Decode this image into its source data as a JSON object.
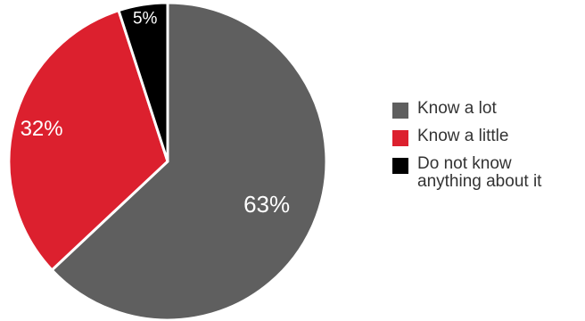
{
  "chart_data": {
    "type": "pie",
    "slices": [
      {
        "label": "Know a lot",
        "value": 63,
        "value_label": "63%",
        "color": "#5f5f5f",
        "label_color": "#ffffff"
      },
      {
        "label": "Know a little",
        "value": 32,
        "value_label": "32%",
        "color": "#dc202e",
        "label_color": "#ffffff"
      },
      {
        "label": "Do not know\nanything about it",
        "value": 5,
        "value_label": "5%",
        "color": "#000000",
        "label_color": "#ffffff"
      }
    ],
    "start_angle_deg": 0,
    "direction": "clockwise",
    "slice_border_color": "#ffffff",
    "legend_position": "right"
  }
}
